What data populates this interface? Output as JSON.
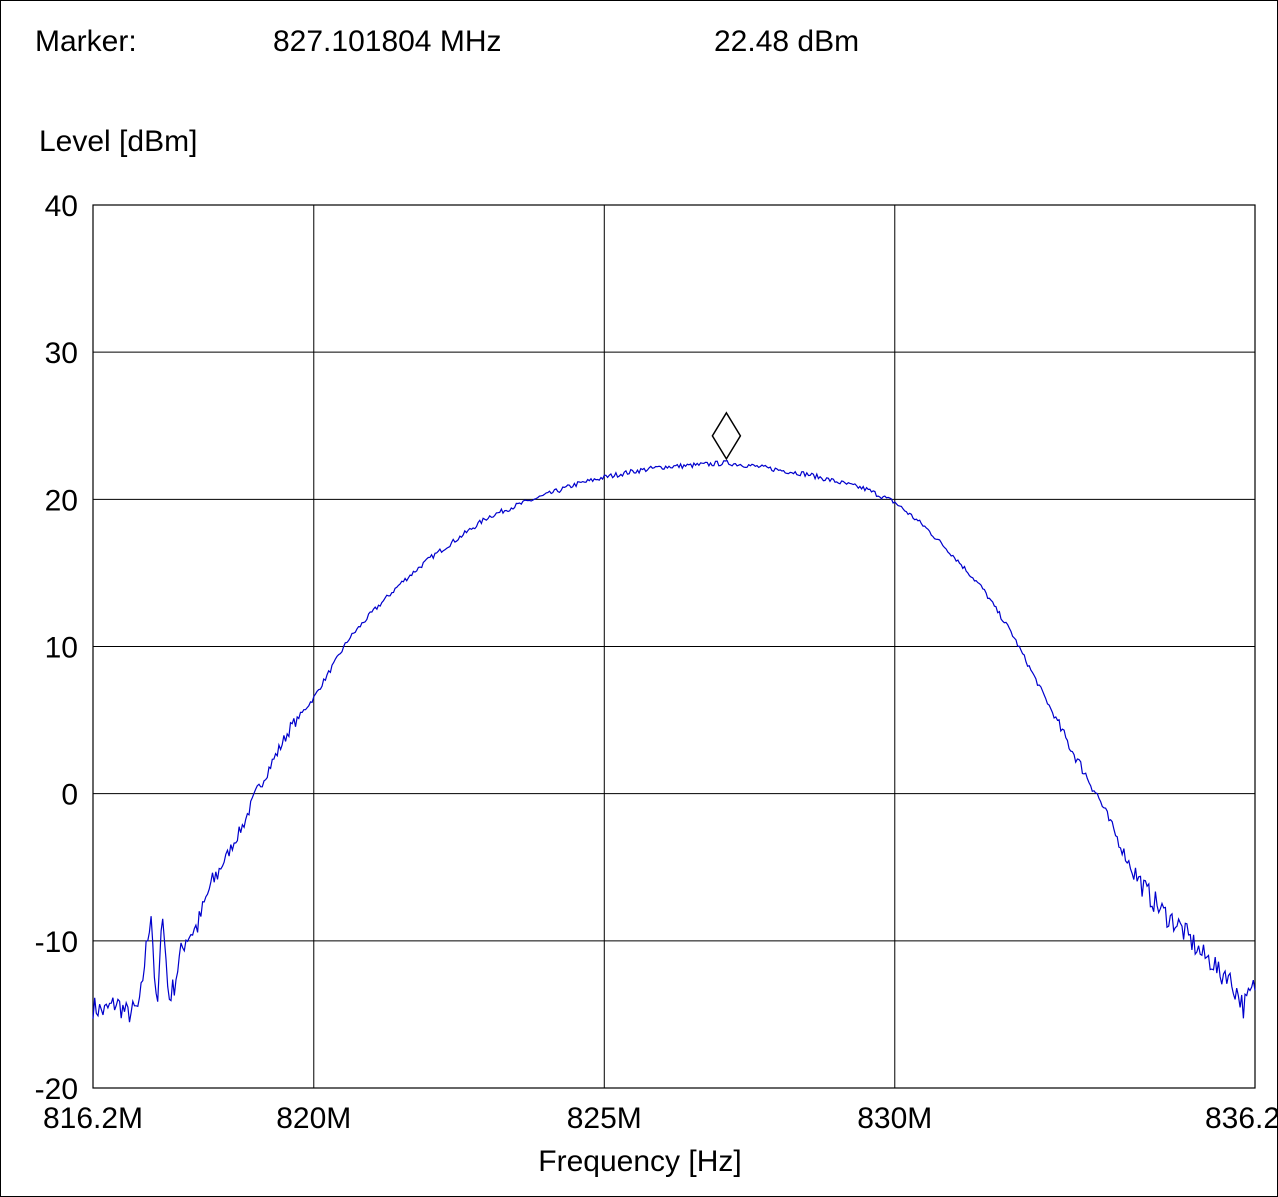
{
  "marker": {
    "label": "Marker:",
    "frequency": "827.101804 MHz",
    "level": "22.48 dBm"
  },
  "chart_data": {
    "type": "line",
    "xlabel": "Frequency [Hz]",
    "ylabel": "Level [dBm]",
    "xlim": [
      816.2,
      836.2
    ],
    "ylim": [
      -20,
      40
    ],
    "x_unit": "MHz",
    "y_ticks": [
      {
        "value": 40,
        "label": "40"
      },
      {
        "value": 30,
        "label": "30"
      },
      {
        "value": 20,
        "label": "20"
      },
      {
        "value": 10,
        "label": "10"
      },
      {
        "value": 0,
        "label": "0"
      },
      {
        "value": -10,
        "label": "-10"
      },
      {
        "value": -20,
        "label": "-20"
      }
    ],
    "x_ticks": [
      {
        "value": 816.2,
        "label": "816.2M"
      },
      {
        "value": 820,
        "label": "820M"
      },
      {
        "value": 825,
        "label": "825M"
      },
      {
        "value": 830,
        "label": "830M"
      },
      {
        "value": 836.2,
        "label": "836.2M"
      }
    ],
    "grid": true,
    "line_color": "#0000cc",
    "marker_point": {
      "x": 827.101804,
      "y": 22.48
    },
    "series": [
      {
        "x": [
          816.2,
          816.4,
          816.6,
          816.8,
          817.0,
          817.1,
          817.2,
          817.3,
          817.4,
          817.5,
          817.6,
          817.7,
          817.8,
          818.0,
          818.2,
          818.4,
          818.6,
          818.8,
          819.0,
          819.2,
          819.4,
          819.6,
          819.8,
          820.0,
          820.3,
          820.6,
          821.0,
          821.5,
          822.0,
          822.5,
          823.0,
          823.5,
          824.0,
          824.5,
          825.0,
          825.5,
          826.0,
          826.5,
          827.1,
          827.5,
          828.0,
          828.5,
          829.0,
          829.5,
          830.0,
          830.5,
          831.0,
          831.5,
          832.0,
          832.5,
          833.0,
          833.5,
          834.0,
          834.3,
          834.6,
          834.9,
          835.1,
          835.3,
          835.5,
          835.6,
          835.7,
          835.8,
          835.9,
          836.0,
          836.2
        ],
        "y": [
          -14.5,
          -14.8,
          -14.2,
          -15.0,
          -14.5,
          -11.0,
          -8.0,
          -15.3,
          -7.8,
          -14.0,
          -13.0,
          -11.0,
          -9.8,
          -9.0,
          -6.5,
          -5.0,
          -3.5,
          -2.0,
          0.0,
          1.5,
          3.0,
          4.5,
          5.5,
          6.5,
          8.5,
          10.5,
          12.3,
          14.3,
          16.0,
          17.4,
          18.8,
          19.6,
          20.3,
          21.0,
          21.5,
          21.9,
          22.2,
          22.3,
          22.48,
          22.3,
          22.0,
          21.7,
          21.2,
          20.7,
          19.8,
          18.2,
          16.2,
          14.0,
          11.0,
          7.2,
          3.3,
          -0.2,
          -4.5,
          -6.5,
          -8.0,
          -9.0,
          -10.0,
          -11.0,
          -11.5,
          -12.5,
          -12.0,
          -13.0,
          -13.5,
          -14.5,
          -13.0
        ]
      }
    ]
  }
}
